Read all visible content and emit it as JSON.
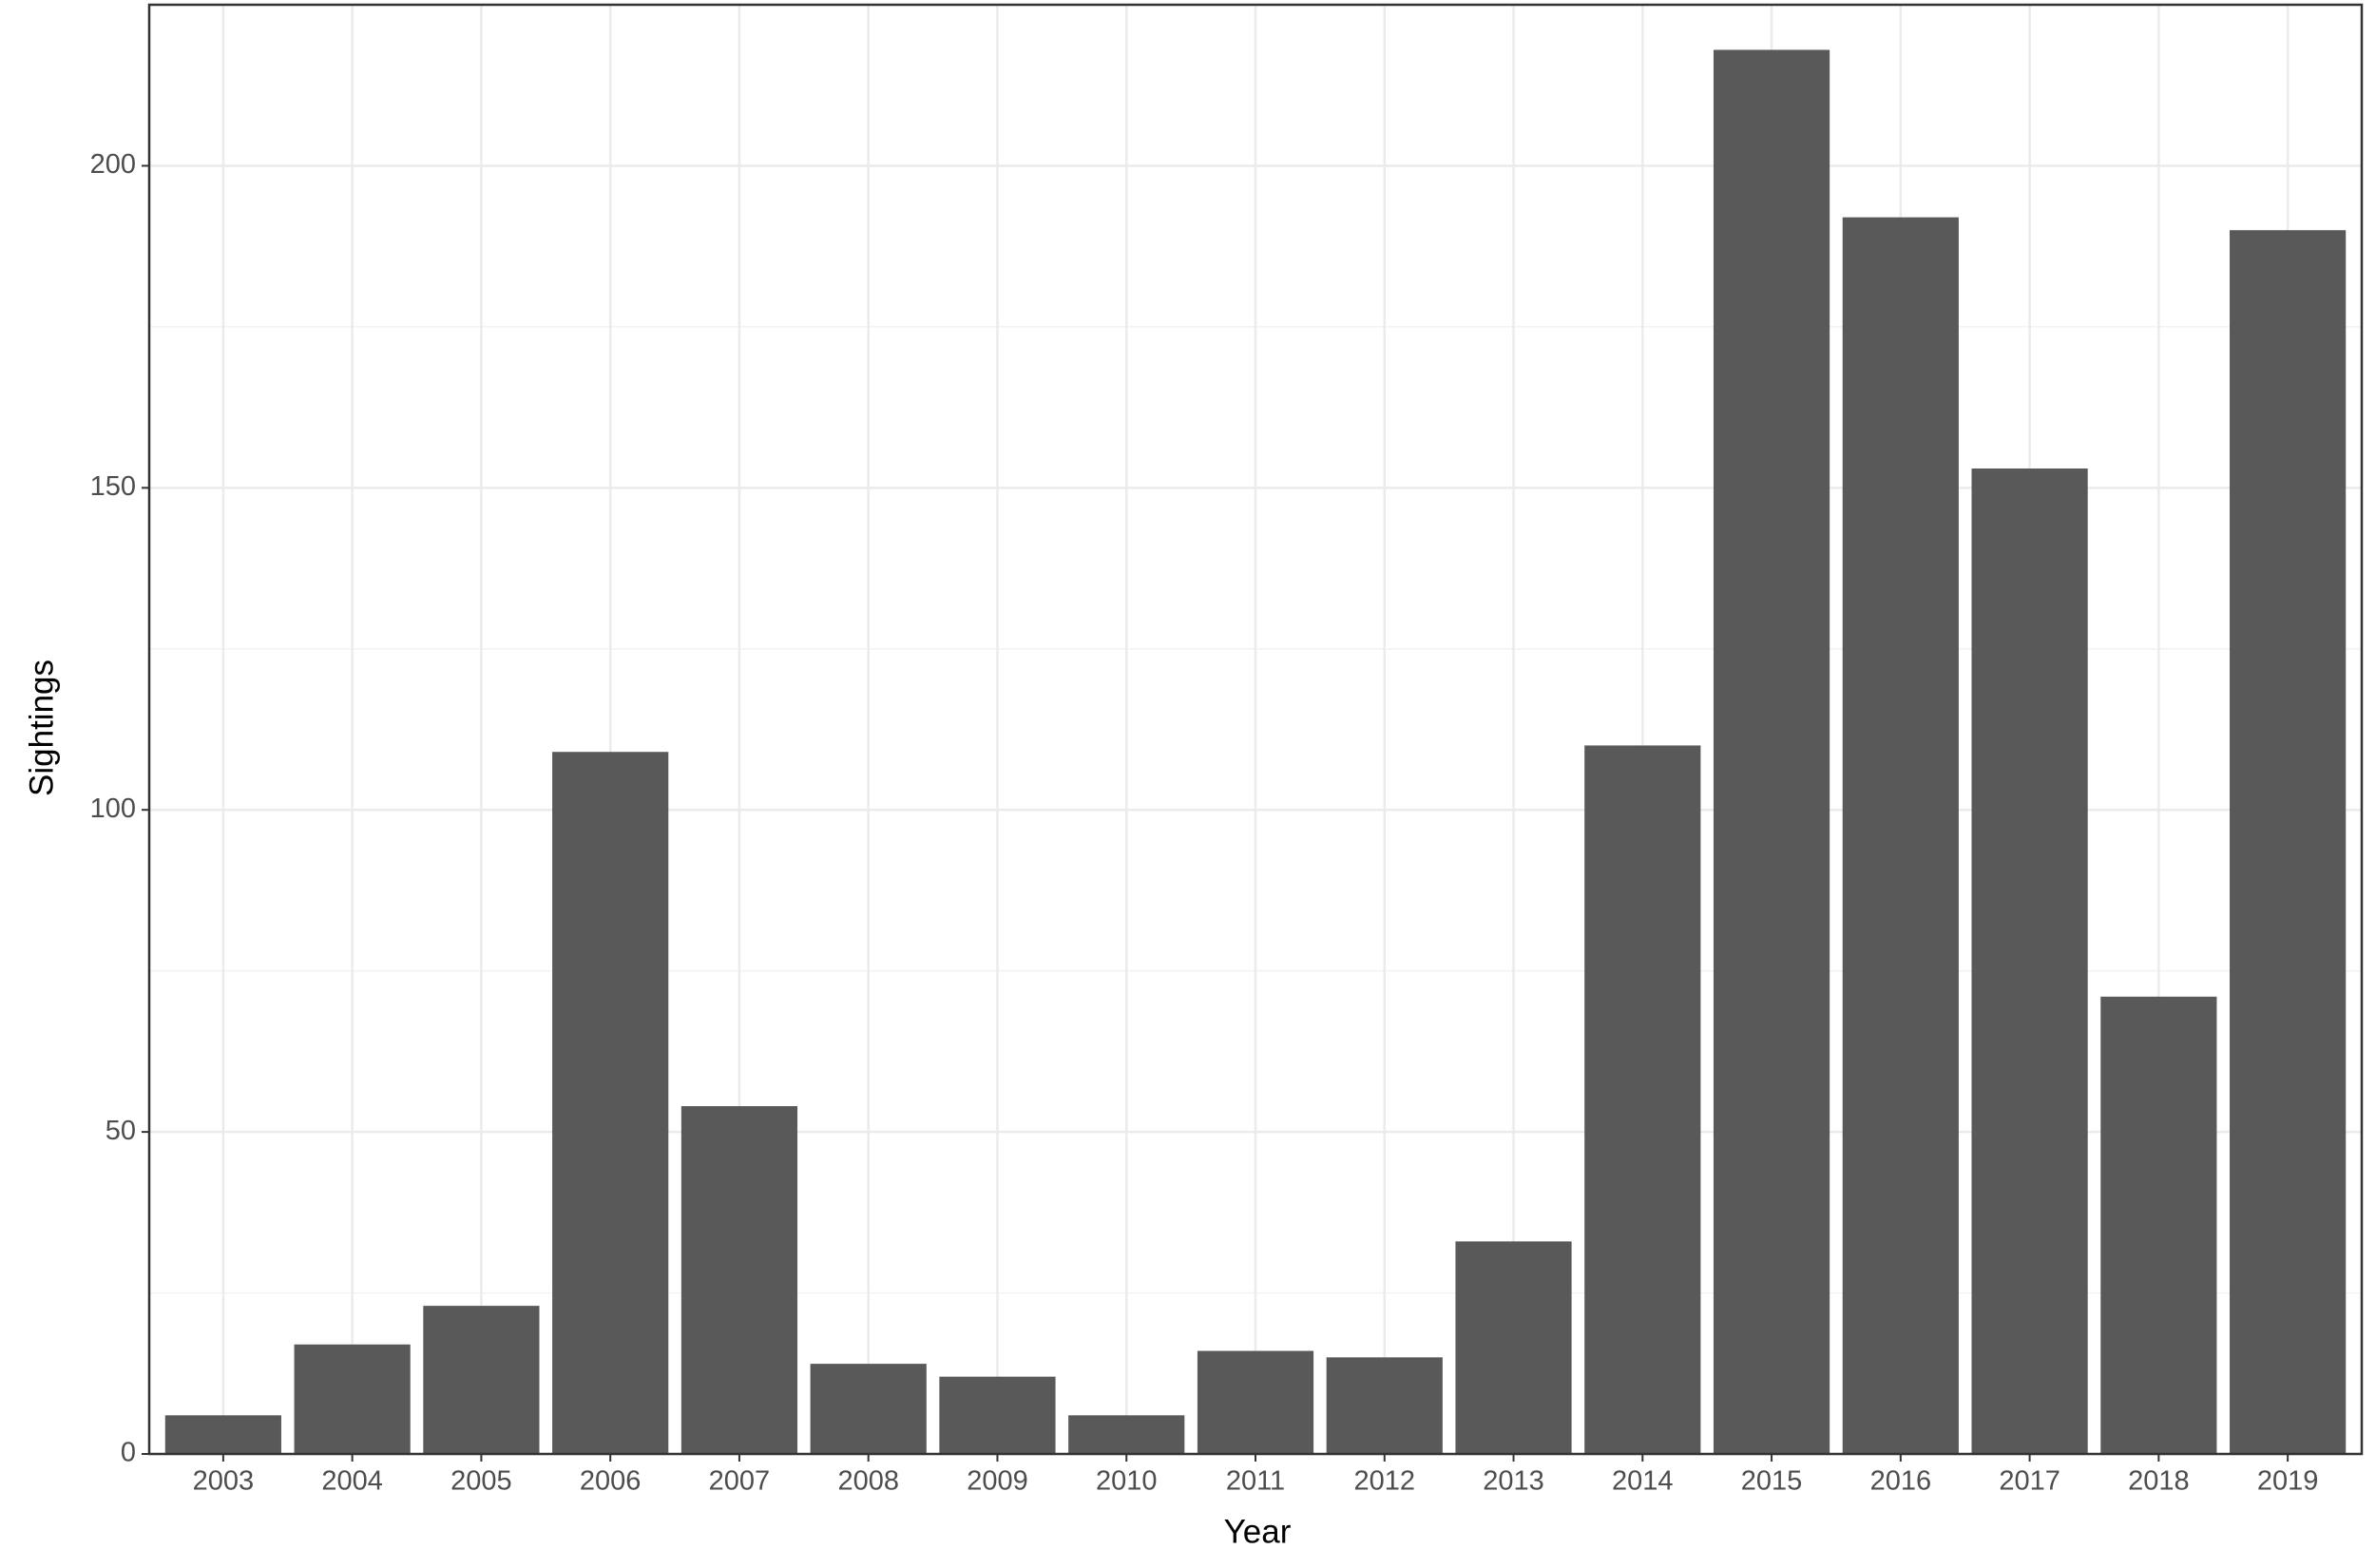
{
  "chart_data": {
    "type": "bar",
    "x_label": "Year",
    "y_label": "Sightings",
    "categories": [
      "2003",
      "2004",
      "2005",
      "2006",
      "2007",
      "2008",
      "2009",
      "2010",
      "2011",
      "2012",
      "2013",
      "2014",
      "2015",
      "2016",
      "2017",
      "2018",
      "2019"
    ],
    "values": [
      6,
      17,
      23,
      109,
      54,
      14,
      12,
      6,
      16,
      15,
      33,
      110,
      218,
      192,
      153,
      71,
      190
    ],
    "color": "#595959",
    "ylim": [
      0,
      225
    ],
    "yticks": [
      0,
      50,
      100,
      150,
      200
    ],
    "grid": true,
    "minor_grid": true
  }
}
